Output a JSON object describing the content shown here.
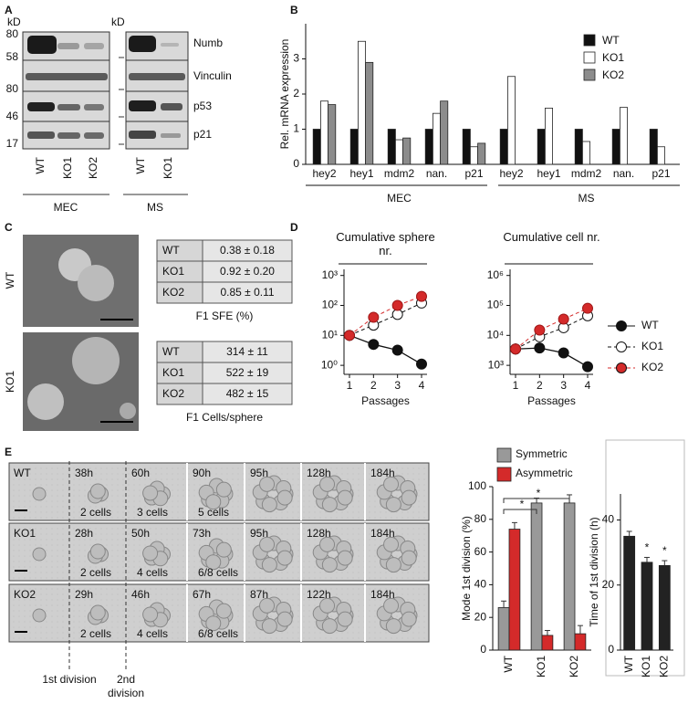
{
  "panel_labels": [
    "A",
    "B",
    "C",
    "D",
    "E"
  ],
  "blot": {
    "kd_labels": [
      "kD",
      "kD"
    ],
    "markers": [
      "80",
      "58",
      "80",
      "46",
      "17"
    ],
    "proteins": [
      "Numb",
      "Vinculin",
      "p53",
      "p21"
    ],
    "lanes_mec": [
      "WT",
      "KO1",
      "KO2"
    ],
    "lanes_ms": [
      "WT",
      "KO1"
    ],
    "groups": [
      "MEC",
      "MS"
    ]
  },
  "sphere_images": {
    "labels": [
      "WT",
      "KO1"
    ]
  },
  "tables": [
    {
      "rows": [
        [
          "WT",
          "0.38 ± 0.18"
        ],
        [
          "KO1",
          "0.92 ± 0.20"
        ],
        [
          "KO2",
          "0.85 ± 0.11"
        ]
      ],
      "caption": "F1 SFE (%)"
    },
    {
      "rows": [
        [
          "WT",
          "314 ± 11"
        ],
        [
          "KO1",
          "522 ± 19"
        ],
        [
          "KO2",
          "482 ± 15"
        ]
      ],
      "caption": "F1 Cells/sphere"
    }
  ],
  "timelapse": {
    "rows": [
      {
        "label": "WT",
        "times": [
          "38h",
          "60h",
          "90h",
          "95h",
          "128h",
          "184h"
        ],
        "cells": [
          "2 cells",
          "3 cells",
          "5 cells"
        ]
      },
      {
        "label": "KO1",
        "times": [
          "28h",
          "50h",
          "73h",
          "95h",
          "128h",
          "184h"
        ],
        "cells": [
          "2 cells",
          "4 cells",
          "6/8 cells"
        ]
      },
      {
        "label": "KO2",
        "times": [
          "29h",
          "46h",
          "67h",
          "87h",
          "122h",
          "184h"
        ],
        "cells": [
          "2 cells",
          "4 cells",
          "6/8 cells"
        ]
      }
    ],
    "divisions": [
      "1st division",
      "2nd division"
    ]
  },
  "chart_data": [
    {
      "type": "bar",
      "ylabel": "Rel. mRNA expression",
      "categories": [
        "hey2",
        "hey1",
        "mdm2",
        "nan.",
        "p21",
        "hey2",
        "hey1",
        "mdm2",
        "nan.",
        "p21"
      ],
      "group_labels": [
        "MEC",
        "MS"
      ],
      "ylim": [
        0,
        4
      ],
      "yticks": [
        0,
        1,
        2,
        3
      ],
      "legend": "upper right",
      "series": [
        {
          "name": "WT",
          "color": "#111111",
          "values": [
            1,
            1,
            1,
            1,
            1,
            1,
            1,
            1,
            1,
            1
          ]
        },
        {
          "name": "KO1",
          "color": "#ffffff",
          "values": [
            1.8,
            3.5,
            0.7,
            1.45,
            0.5,
            2.5,
            1.6,
            0.65,
            1.62,
            0.5
          ]
        },
        {
          "name": "KO2",
          "color": "#8c8c8c",
          "values": [
            1.7,
            2.9,
            0.75,
            1.8,
            0.6,
            null,
            null,
            null,
            null,
            null
          ]
        }
      ]
    },
    {
      "type": "line",
      "title": "Cumulative sphere nr.",
      "xlabel": "Passages",
      "log_y": true,
      "x": [
        1,
        2,
        3,
        4
      ],
      "xlim": [
        1,
        4
      ],
      "xticks": [
        1,
        2,
        3,
        4
      ],
      "ylim": [
        0.5,
        1600
      ],
      "yticks": [
        {
          "value": 1,
          "label": "10⁰"
        },
        {
          "value": 10,
          "label": "10¹"
        },
        {
          "value": 100,
          "label": "10²"
        },
        {
          "value": 1000,
          "label": "10³"
        }
      ],
      "series": [
        {
          "color": "#111111",
          "marker_fill": "#111111",
          "dashed": false,
          "values": [
            10,
            5,
            3.2,
            1.1
          ]
        },
        {
          "color": "#111111",
          "marker_fill": "#ffffff",
          "dashed": true,
          "values": [
            10,
            22,
            50,
            120
          ]
        },
        {
          "color": "#d42a2a",
          "marker_fill": "#d42a2a",
          "dashed": true,
          "values": [
            10,
            40,
            100,
            200
          ]
        }
      ]
    },
    {
      "type": "line",
      "title": "Cumulative cell nr.",
      "xlabel": "Passages",
      "log_y": true,
      "x": [
        1,
        2,
        3,
        4
      ],
      "xlim": [
        1,
        4
      ],
      "xticks": [
        1,
        2,
        3,
        4
      ],
      "ylim": [
        500,
        1600000
      ],
      "yticks": [
        {
          "value": 1000,
          "label": "10³"
        },
        {
          "value": 10000,
          "label": "10⁴"
        },
        {
          "value": 100000,
          "label": "10⁵"
        },
        {
          "value": 1000000,
          "label": "10⁶"
        }
      ],
      "legend": "right",
      "series": [
        {
          "name": "WT",
          "color": "#111111",
          "marker_fill": "#111111",
          "dashed": false,
          "values": [
            3500,
            3800,
            2600,
            900
          ]
        },
        {
          "name": "KO1",
          "color": "#111111",
          "marker_fill": "#ffffff",
          "dashed": true,
          "values": [
            3500,
            9000,
            18000,
            45000
          ]
        },
        {
          "name": "KO2",
          "color": "#d42a2a",
          "marker_fill": "#d42a2a",
          "dashed": true,
          "values": [
            3500,
            15000,
            35000,
            80000
          ]
        }
      ]
    },
    {
      "type": "bar",
      "ylabel": "Mode 1st division (%)",
      "categories": [
        "WT",
        "KO1",
        "KO2"
      ],
      "ylim": [
        0,
        100
      ],
      "yticks": [
        0,
        20,
        40,
        60,
        80,
        100
      ],
      "legend": "top",
      "annotations": [
        "*",
        "*"
      ],
      "series": [
        {
          "name": "Symmetric",
          "color": "#999999",
          "values": [
            26,
            90,
            90
          ],
          "errors": [
            4,
            3,
            5
          ]
        },
        {
          "name": "Asymmetric",
          "color": "#d42a2a",
          "values": [
            74,
            9,
            10
          ],
          "errors": [
            4,
            3,
            5
          ]
        }
      ]
    },
    {
      "type": "bar",
      "ylabel": "Time of 1st division (h)",
      "categories": [
        "WT",
        "KO1",
        "KO2"
      ],
      "ylim": [
        0,
        48
      ],
      "yticks": [
        0,
        20,
        40
      ],
      "annotations": [
        "*",
        "*"
      ],
      "series": [
        {
          "color": "#222222",
          "values": [
            35,
            27,
            26
          ],
          "errors": [
            1.5,
            1.5,
            1.5
          ]
        }
      ]
    }
  ]
}
